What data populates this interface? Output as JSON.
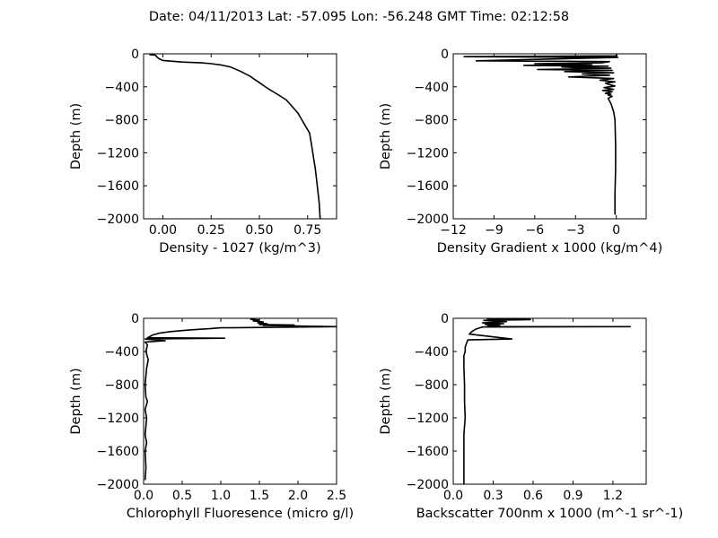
{
  "title": "Date: 04/11/2013  Lat:  -57.095 Lon:  -56.248  GMT Time: 02:12:58",
  "chart_data": [
    {
      "type": "line",
      "xlabel": "Density - 1027 (kg/m^3)",
      "ylabel": "Depth (m)",
      "xlim": [
        -0.1,
        0.9
      ],
      "ylim": [
        -2000,
        0
      ],
      "xticks": [
        0.0,
        0.25,
        0.5,
        0.75
      ],
      "xtick_labels": [
        "0.00",
        "0.25",
        "0.50",
        "0.75"
      ],
      "yticks": [
        0,
        -400,
        -800,
        -1200,
        -1600,
        -2000
      ],
      "ytick_labels": [
        "0",
        "−400",
        "−800",
        "−1200",
        "−1600",
        "−2000"
      ],
      "color": "#000000",
      "series": [
        {
          "x": [
            -0.07,
            -0.04,
            -0.03,
            -0.02,
            0.0,
            0.1,
            0.2,
            0.25,
            0.3,
            0.35,
            0.4,
            0.45,
            0.5,
            0.55,
            0.6,
            0.64,
            0.67,
            0.7,
            0.72,
            0.74,
            0.76,
            0.77,
            0.78,
            0.79,
            0.8,
            0.81,
            0.815
          ],
          "y": [
            -10,
            -15,
            -40,
            -60,
            -80,
            -100,
            -110,
            -120,
            -135,
            -160,
            -210,
            -270,
            -350,
            -430,
            -500,
            -560,
            -640,
            -720,
            -800,
            -880,
            -960,
            -1100,
            -1250,
            -1400,
            -1600,
            -1800,
            -2000
          ]
        }
      ]
    },
    {
      "type": "line",
      "xlabel": "Density Gradient x 1000 (kg/m^4)",
      "ylabel": "Depth (m)",
      "xlim": [
        -12,
        2.2
      ],
      "ylim": [
        -2000,
        0
      ],
      "xticks": [
        -12,
        -9,
        -6,
        -3,
        0
      ],
      "xtick_labels": [
        "−12",
        "−9",
        "−6",
        "−3",
        "0"
      ],
      "yticks": [
        0,
        -400,
        -800,
        -1200,
        -1600,
        -2000
      ],
      "ytick_labels": [
        "0",
        "−400",
        "−800",
        "−1200",
        "−1600",
        "−2000"
      ],
      "color": "#000000",
      "series": [
        {
          "x": [
            0.0,
            0.05,
            -11.2,
            0.1,
            -10.3,
            -0.5,
            -1.1,
            -6.0,
            -1.8,
            -6.8,
            -0.6,
            -4.0,
            -2.6,
            -0.4,
            -5.8,
            -0.3,
            -3.8,
            -0.2,
            -2.5,
            -0.5,
            -3.5,
            -0.2,
            -1.2,
            -0.1,
            -0.8,
            -0.6,
            -0.1,
            -0.9,
            -0.2,
            -1.0,
            -0.3,
            -0.8,
            -0.4,
            -0.6,
            -0.3,
            -0.6,
            -0.4,
            -0.2,
            -0.1,
            -0.05,
            -0.05,
            -0.1,
            -0.1,
            -0.1
          ],
          "y": [
            -5,
            -25,
            -35,
            -45,
            -85,
            -95,
            -110,
            -120,
            -130,
            -140,
            -150,
            -160,
            -170,
            -175,
            -190,
            -200,
            -215,
            -230,
            -245,
            -260,
            -280,
            -300,
            -320,
            -340,
            -355,
            -370,
            -390,
            -410,
            -430,
            -445,
            -460,
            -480,
            -490,
            -500,
            -515,
            -540,
            -600,
            -700,
            -800,
            -1100,
            -1400,
            -1700,
            -1850,
            -1950
          ]
        }
      ]
    },
    {
      "type": "line",
      "xlabel": "Chlorophyll Fluoresence (micro g/l)",
      "ylabel": "Depth (m)",
      "xlim": [
        0.0,
        2.5
      ],
      "ylim": [
        -2000,
        0
      ],
      "xticks": [
        0.0,
        0.5,
        1.0,
        1.5,
        2.0,
        2.5
      ],
      "xtick_labels": [
        "0.0",
        "0.5",
        "1.0",
        "1.5",
        "2.0",
        "2.5"
      ],
      "yticks": [
        0,
        -400,
        -800,
        -1200,
        -1600,
        -2000
      ],
      "ytick_labels": [
        "0",
        "−400",
        "−800",
        "−1200",
        "−1600",
        "−2000"
      ],
      "color": "#000000",
      "series": [
        {
          "x": [
            1.38,
            1.5,
            1.42,
            1.55,
            1.48,
            1.6,
            1.5,
            1.95,
            1.55,
            2.5,
            1.0,
            0.85,
            0.6,
            0.35,
            0.2,
            0.12,
            0.08,
            0.05,
            1.05,
            0.02,
            0.28,
            0.02,
            0.05,
            0.03,
            0.06,
            0.04,
            0.02,
            0.03,
            0.05,
            0.02,
            0.04,
            0.03,
            0.02,
            0.04,
            0.02,
            0.03,
            0.02
          ],
          "y": [
            -10,
            -20,
            -30,
            -45,
            -55,
            -65,
            -75,
            -80,
            -85,
            -100,
            -115,
            -125,
            -140,
            -160,
            -180,
            -200,
            -220,
            -235,
            -240,
            -250,
            -270,
            -285,
            -320,
            -400,
            -500,
            -600,
            -800,
            -950,
            -1000,
            -1100,
            -1200,
            -1300,
            -1400,
            -1500,
            -1600,
            -1800,
            -1950
          ]
        }
      ]
    },
    {
      "type": "line",
      "xlabel": "Backscatter 700nm x 1000 (m^-1 sr^-1)",
      "ylabel": "Depth (m)",
      "xlim": [
        0.0,
        1.45
      ],
      "ylim": [
        -2000,
        0
      ],
      "xticks": [
        0.0,
        0.3,
        0.6,
        0.9,
        1.2
      ],
      "xtick_labels": [
        "0.0",
        "0.3",
        "0.6",
        "0.9",
        "1.2"
      ],
      "yticks": [
        0,
        -400,
        -800,
        -1200,
        -1600,
        -2000
      ],
      "ytick_labels": [
        "0",
        "−400",
        "−800",
        "−1200",
        "−1600",
        "−2000"
      ],
      "color": "#000000",
      "series": [
        {
          "x": [
            0.25,
            0.58,
            0.23,
            0.4,
            0.22,
            0.38,
            0.24,
            0.35,
            0.26,
            0.3,
            1.33,
            0.22,
            0.17,
            0.14,
            0.12,
            0.44,
            0.11,
            0.1,
            0.09,
            0.09,
            0.08,
            0.08,
            0.085,
            0.085,
            0.09,
            0.08,
            0.08,
            0.08
          ],
          "y": [
            -5,
            -15,
            -25,
            -40,
            -55,
            -65,
            -75,
            -85,
            -95,
            -100,
            -100,
            -105,
            -130,
            -160,
            -190,
            -250,
            -260,
            -300,
            -350,
            -400,
            -450,
            -600,
            -800,
            -1000,
            -1200,
            -1400,
            -1600,
            -2000
          ]
        }
      ]
    }
  ]
}
